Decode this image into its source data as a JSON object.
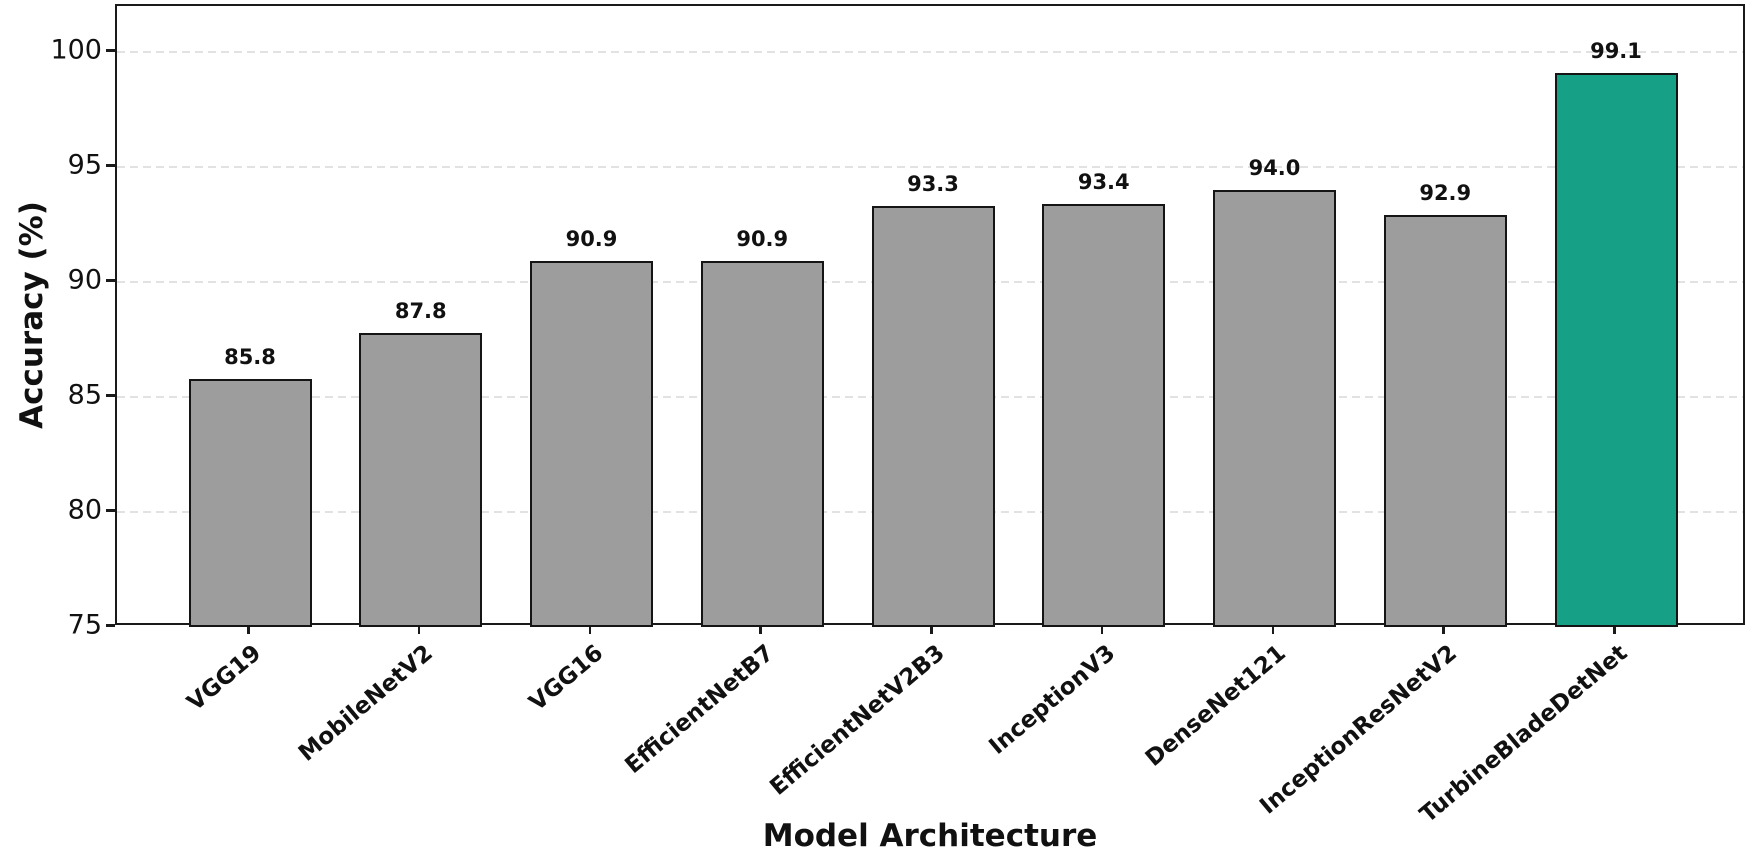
{
  "chart_data": {
    "type": "bar",
    "title": "",
    "xlabel": "Model Architecture",
    "ylabel": "Accuracy (%)",
    "categories": [
      "VGG19",
      "MobileNetV2",
      "VGG16",
      "EfficientNetB7",
      "EfficientNetV2B3",
      "InceptionV3",
      "DenseNet121",
      "InceptionResNetV2",
      "TurbineBladeDetNet"
    ],
    "values": [
      85.8,
      87.8,
      90.9,
      90.9,
      93.3,
      93.4,
      94.0,
      92.9,
      99.1
    ],
    "value_labels": [
      "85.8",
      "87.8",
      "90.9",
      "90.9",
      "93.3",
      "93.4",
      "94.0",
      "92.9",
      "99.1"
    ],
    "yticks": [
      75,
      80,
      85,
      90,
      95,
      100
    ],
    "ylim": [
      75,
      102
    ],
    "grid": "horizontal-dashed",
    "legend": null,
    "colors": {
      "bar_fill": "#9d9d9d",
      "highlight_fill": "#16a085",
      "bar_edge": "#151515",
      "grid_color": "#e2e2e2",
      "text_color": "#111111",
      "background": "#ffffff"
    },
    "highlight_index": 8
  }
}
